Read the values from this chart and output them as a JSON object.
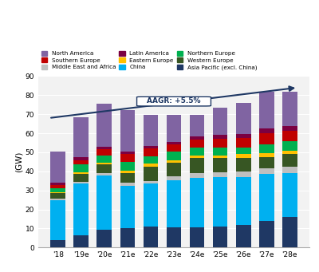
{
  "categories": [
    "'18",
    "'19e",
    "'20e",
    "'21e",
    "'22e",
    "'23e",
    "'24e",
    "'25e",
    "'26e",
    "'27e",
    "'28e"
  ],
  "series": {
    "Asia Pacific (excl. China)": [
      4,
      6.5,
      9.5,
      10,
      11,
      10.5,
      10.5,
      11,
      12,
      14,
      16
    ],
    "China": [
      21,
      27,
      28.5,
      22.5,
      22.5,
      25,
      26,
      26,
      25,
      24.5,
      23
    ],
    "Middle East and Africa": [
      0.5,
      1,
      1,
      1.5,
      1.5,
      2,
      2.5,
      2.5,
      3,
      3,
      3.5
    ],
    "Western Europe": [
      3,
      4,
      4.5,
      5,
      7.5,
      7,
      8,
      7.5,
      7,
      6,
      6.5
    ],
    "Eastern Europe": [
      0.5,
      1,
      1,
      1.5,
      1.5,
      1.5,
      1.5,
      1.5,
      2,
      2,
      2
    ],
    "Northern Europe": [
      2,
      4,
      4,
      4.5,
      4,
      4.5,
      4,
      4,
      3.5,
      4.5,
      5
    ],
    "Southern Europe": [
      2,
      2.5,
      3,
      4,
      4,
      3.5,
      4,
      4.5,
      5,
      6,
      5.5
    ],
    "Latin America": [
      1,
      1.5,
      1.5,
      1.5,
      1.5,
      1.5,
      2,
      2,
      2,
      2.5,
      2.5
    ],
    "North America": [
      16.5,
      21,
      22.5,
      21.5,
      16,
      14,
      11,
      14.5,
      16.5,
      19.5,
      18
    ]
  },
  "colors": {
    "Asia Pacific (excl. China)": "#1f3864",
    "China": "#00b0f0",
    "Middle East and Africa": "#bfbfbf",
    "Western Europe": "#375623",
    "Eastern Europe": "#ffc000",
    "Northern Europe": "#00b050",
    "Southern Europe": "#c00000",
    "Latin America": "#7b0041",
    "North America": "#8064a2"
  },
  "bg_color": "#f2f2f2",
  "ylabel": "(GW)",
  "ylim": [
    0,
    90
  ],
  "yticks": [
    0,
    10,
    20,
    30,
    40,
    50,
    60,
    70,
    80,
    90
  ],
  "aagr_text": "AAGR: +5.5%",
  "legend_order": [
    "North America",
    "Southern Europe",
    "Middle East and Africa",
    "Latin America",
    "Eastern Europe",
    "China",
    "Northern Europe",
    "Western Europe",
    "Asia Pacific (excl. China)"
  ]
}
